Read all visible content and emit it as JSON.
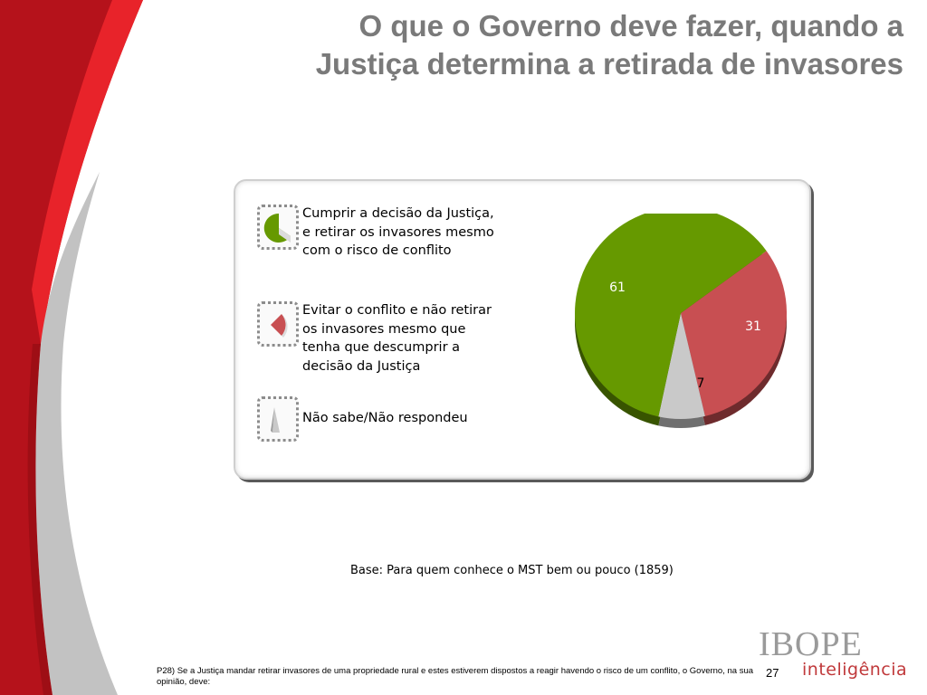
{
  "title": {
    "line1": "O que o Governo deve fazer, quando a",
    "line2": "Justiça determina a retirada de invasores"
  },
  "colors": {
    "green": "#669900",
    "red": "#c84f52",
    "gray": "#c9c9c9",
    "title_gray": "#7a7a7a",
    "band_red": "#b5121b",
    "band_gray": "#c2c2c2"
  },
  "chart_data": {
    "type": "pie",
    "categories": [
      "Cumprir a decisão da Justiça,\ne retirar os invasores mesmo\ncom o risco de conflito",
      "Evitar o conflito e não retirar\nos invasores mesmo que\ntenha que descumprir a\ndecisão da Justiça",
      "Não sabe/Não respondeu"
    ],
    "values": [
      61,
      31,
      7
    ],
    "data_labels": [
      "61",
      "31",
      "7"
    ],
    "colors": [
      "#669900",
      "#c84f52",
      "#c9c9c9"
    ],
    "legend_position": "left"
  },
  "base_note": "Base: Para quem conhece o MST bem ou pouco (1859)",
  "question": "P28) Se a Justiça mandar retirar invasores de uma propriedade rural e estes estiverem dispostos a reagir havendo o risco de um conflito, o Governo, na sua opinião, deve:",
  "page_number": "27",
  "logo": {
    "main": "IBOPE",
    "sub": "inteligência"
  }
}
